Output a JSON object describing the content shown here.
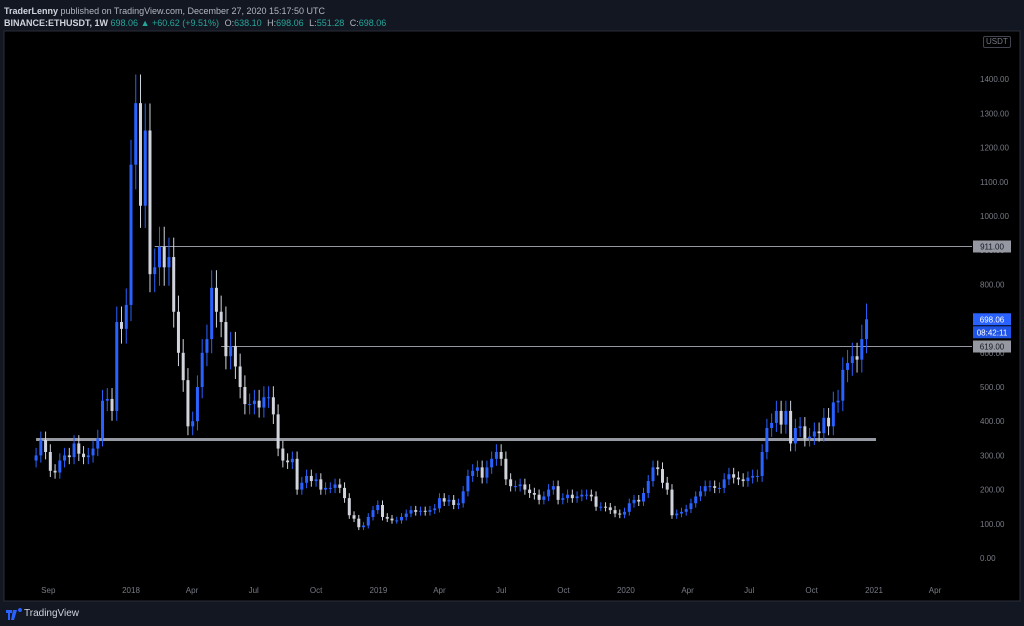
{
  "header": {
    "author": "TraderLenny",
    "published_text": "published on TradingView.com, December 27, 2020 15:17:50 UTC",
    "symbol": "BINANCE:ETHUSDT, 1W",
    "last": "698.06",
    "change": "▲ +60.62 (+9.51%)",
    "o_label": "O:",
    "o_value": "638.10",
    "h_label": "H:",
    "h_value": "698.06",
    "l_label": "L:",
    "l_value": "551.28",
    "c_label": "C:",
    "c_value": "698.06"
  },
  "currency_badge": "USDT",
  "footer": {
    "brand": "TradingView"
  },
  "colors": {
    "background": "#131722",
    "candle_up": "#2962ff",
    "candle_down": "#d1d4dc",
    "axis_text": "#787b86",
    "level_line": "#9598a1",
    "support_line": "#b2b5be",
    "price_label_bg": "#2962ff"
  },
  "chart_data": {
    "type": "candlestick",
    "interval": "1W",
    "ylim": [
      0,
      1500
    ],
    "y_ticks": [
      "0.00",
      "100.00",
      "200.00",
      "300.00",
      "400.00",
      "500.00",
      "600.00",
      "700.00",
      "800.00",
      "900.00",
      "1000.00",
      "1100.00",
      "1200.00",
      "1300.00",
      "1400.00"
    ],
    "x_ticks": [
      {
        "label": "Sep",
        "date": "2017-09-01"
      },
      {
        "label": "2018",
        "date": "2018-01-01"
      },
      {
        "label": "Apr",
        "date": "2018-04-01"
      },
      {
        "label": "Jul",
        "date": "2018-07-01"
      },
      {
        "label": "Oct",
        "date": "2018-10-01"
      },
      {
        "label": "2019",
        "date": "2019-01-01"
      },
      {
        "label": "Apr",
        "date": "2019-04-01"
      },
      {
        "label": "Jul",
        "date": "2019-07-01"
      },
      {
        "label": "Oct",
        "date": "2019-10-01"
      },
      {
        "label": "2020",
        "date": "2020-01-01"
      },
      {
        "label": "Apr",
        "date": "2020-04-01"
      },
      {
        "label": "Jul",
        "date": "2020-07-01"
      },
      {
        "label": "Oct",
        "date": "2020-10-01"
      },
      {
        "label": "2021",
        "date": "2021-01-01"
      },
      {
        "label": "Apr",
        "date": "2021-04-01"
      }
    ],
    "levels": [
      {
        "value": 911.0,
        "label": "911.00",
        "start": "2018-02-05"
      },
      {
        "value": 619.0,
        "label": "619.00",
        "start": "2018-05-14"
      }
    ],
    "support": {
      "value": 345,
      "start": "2017-08-14",
      "end": "2021-01-04"
    },
    "last_price": {
      "value": 698.06,
      "label": "698.06",
      "countdown": "08:42:11"
    },
    "closes": [
      {
        "date": "2017-08-14",
        "c": 300
      },
      {
        "date": "2017-08-21",
        "c": 345
      },
      {
        "date": "2017-08-28",
        "c": 310
      },
      {
        "date": "2017-09-04",
        "c": 255
      },
      {
        "date": "2017-09-11",
        "c": 250
      },
      {
        "date": "2017-09-18",
        "c": 285
      },
      {
        "date": "2017-09-25",
        "c": 300
      },
      {
        "date": "2017-10-02",
        "c": 295
      },
      {
        "date": "2017-10-09",
        "c": 335
      },
      {
        "date": "2017-10-16",
        "c": 305
      },
      {
        "date": "2017-10-23",
        "c": 295
      },
      {
        "date": "2017-10-30",
        "c": 300
      },
      {
        "date": "2017-11-06",
        "c": 320
      },
      {
        "date": "2017-11-13",
        "c": 350
      },
      {
        "date": "2017-11-20",
        "c": 460
      },
      {
        "date": "2017-11-27",
        "c": 465
      },
      {
        "date": "2017-12-04",
        "c": 430
      },
      {
        "date": "2017-12-11",
        "c": 690
      },
      {
        "date": "2017-12-18",
        "c": 670
      },
      {
        "date": "2017-12-25",
        "c": 740
      },
      {
        "date": "2018-01-01",
        "c": 1150
      },
      {
        "date": "2018-01-08",
        "c": 1330
      },
      {
        "date": "2018-01-15",
        "c": 1030
      },
      {
        "date": "2018-01-22",
        "c": 1250
      },
      {
        "date": "2018-01-29",
        "c": 830
      },
      {
        "date": "2018-02-05",
        "c": 850
      },
      {
        "date": "2018-02-12",
        "c": 910
      },
      {
        "date": "2018-02-19",
        "c": 850
      },
      {
        "date": "2018-02-26",
        "c": 880
      },
      {
        "date": "2018-03-05",
        "c": 720
      },
      {
        "date": "2018-03-12",
        "c": 600
      },
      {
        "date": "2018-03-19",
        "c": 520
      },
      {
        "date": "2018-03-26",
        "c": 385
      },
      {
        "date": "2018-04-02",
        "c": 400
      },
      {
        "date": "2018-04-09",
        "c": 500
      },
      {
        "date": "2018-04-16",
        "c": 600
      },
      {
        "date": "2018-04-23",
        "c": 640
      },
      {
        "date": "2018-04-30",
        "c": 790
      },
      {
        "date": "2018-05-07",
        "c": 720
      },
      {
        "date": "2018-05-14",
        "c": 690
      },
      {
        "date": "2018-05-21",
        "c": 590
      },
      {
        "date": "2018-05-28",
        "c": 620
      },
      {
        "date": "2018-06-04",
        "c": 560
      },
      {
        "date": "2018-06-11",
        "c": 500
      },
      {
        "date": "2018-06-18",
        "c": 450
      },
      {
        "date": "2018-06-25",
        "c": 450
      },
      {
        "date": "2018-07-02",
        "c": 460
      },
      {
        "date": "2018-07-09",
        "c": 440
      },
      {
        "date": "2018-07-16",
        "c": 470
      },
      {
        "date": "2018-07-23",
        "c": 470
      },
      {
        "date": "2018-07-30",
        "c": 420
      },
      {
        "date": "2018-08-06",
        "c": 320
      },
      {
        "date": "2018-08-13",
        "c": 285
      },
      {
        "date": "2018-08-20",
        "c": 280
      },
      {
        "date": "2018-08-27",
        "c": 290
      },
      {
        "date": "2018-09-03",
        "c": 200
      },
      {
        "date": "2018-09-10",
        "c": 220
      },
      {
        "date": "2018-09-17",
        "c": 240
      },
      {
        "date": "2018-09-24",
        "c": 225
      },
      {
        "date": "2018-10-01",
        "c": 230
      },
      {
        "date": "2018-10-08",
        "c": 200
      },
      {
        "date": "2018-10-15",
        "c": 205
      },
      {
        "date": "2018-10-22",
        "c": 205
      },
      {
        "date": "2018-10-29",
        "c": 215
      },
      {
        "date": "2018-11-05",
        "c": 205
      },
      {
        "date": "2018-11-12",
        "c": 175
      },
      {
        "date": "2018-11-19",
        "c": 125
      },
      {
        "date": "2018-11-26",
        "c": 115
      },
      {
        "date": "2018-12-03",
        "c": 90
      },
      {
        "date": "2018-12-10",
        "c": 95
      },
      {
        "date": "2018-12-17",
        "c": 120
      },
      {
        "date": "2018-12-24",
        "c": 140
      },
      {
        "date": "2018-12-31",
        "c": 155
      },
      {
        "date": "2019-01-07",
        "c": 120
      },
      {
        "date": "2019-01-14",
        "c": 115
      },
      {
        "date": "2019-01-21",
        "c": 110
      },
      {
        "date": "2019-01-28",
        "c": 110
      },
      {
        "date": "2019-02-04",
        "c": 120
      },
      {
        "date": "2019-02-11",
        "c": 130
      },
      {
        "date": "2019-02-18",
        "c": 140
      },
      {
        "date": "2019-02-25",
        "c": 135
      },
      {
        "date": "2019-03-04",
        "c": 138
      },
      {
        "date": "2019-03-11",
        "c": 135
      },
      {
        "date": "2019-03-18",
        "c": 140
      },
      {
        "date": "2019-03-25",
        "c": 145
      },
      {
        "date": "2019-04-01",
        "c": 175
      },
      {
        "date": "2019-04-08",
        "c": 165
      },
      {
        "date": "2019-04-15",
        "c": 170
      },
      {
        "date": "2019-04-22",
        "c": 155
      },
      {
        "date": "2019-04-29",
        "c": 160
      },
      {
        "date": "2019-05-06",
        "c": 195
      },
      {
        "date": "2019-05-13",
        "c": 240
      },
      {
        "date": "2019-05-20",
        "c": 255
      },
      {
        "date": "2019-05-27",
        "c": 265
      },
      {
        "date": "2019-06-03",
        "c": 235
      },
      {
        "date": "2019-06-10",
        "c": 265
      },
      {
        "date": "2019-06-17",
        "c": 290
      },
      {
        "date": "2019-06-24",
        "c": 310
      },
      {
        "date": "2019-07-01",
        "c": 290
      },
      {
        "date": "2019-07-08",
        "c": 230
      },
      {
        "date": "2019-07-15",
        "c": 210
      },
      {
        "date": "2019-07-22",
        "c": 210
      },
      {
        "date": "2019-07-29",
        "c": 215
      },
      {
        "date": "2019-08-05",
        "c": 200
      },
      {
        "date": "2019-08-12",
        "c": 190
      },
      {
        "date": "2019-08-19",
        "c": 185
      },
      {
        "date": "2019-08-26",
        "c": 170
      },
      {
        "date": "2019-09-02",
        "c": 180
      },
      {
        "date": "2019-09-09",
        "c": 200
      },
      {
        "date": "2019-09-16",
        "c": 210
      },
      {
        "date": "2019-09-23",
        "c": 170
      },
      {
        "date": "2019-09-30",
        "c": 175
      },
      {
        "date": "2019-10-07",
        "c": 185
      },
      {
        "date": "2019-10-14",
        "c": 175
      },
      {
        "date": "2019-10-21",
        "c": 180
      },
      {
        "date": "2019-10-28",
        "c": 185
      },
      {
        "date": "2019-11-04",
        "c": 185
      },
      {
        "date": "2019-11-11",
        "c": 180
      },
      {
        "date": "2019-11-18",
        "c": 150
      },
      {
        "date": "2019-11-25",
        "c": 150
      },
      {
        "date": "2019-12-02",
        "c": 148
      },
      {
        "date": "2019-12-09",
        "c": 140
      },
      {
        "date": "2019-12-16",
        "c": 130
      },
      {
        "date": "2019-12-23",
        "c": 127
      },
      {
        "date": "2019-12-30",
        "c": 135
      },
      {
        "date": "2020-01-06",
        "c": 160
      },
      {
        "date": "2020-01-13",
        "c": 170
      },
      {
        "date": "2020-01-20",
        "c": 165
      },
      {
        "date": "2020-01-27",
        "c": 190
      },
      {
        "date": "2020-02-03",
        "c": 225
      },
      {
        "date": "2020-02-10",
        "c": 265
      },
      {
        "date": "2020-02-17",
        "c": 260
      },
      {
        "date": "2020-02-24",
        "c": 220
      },
      {
        "date": "2020-03-02",
        "c": 200
      },
      {
        "date": "2020-03-09",
        "c": 125
      },
      {
        "date": "2020-03-16",
        "c": 130
      },
      {
        "date": "2020-03-23",
        "c": 135
      },
      {
        "date": "2020-03-30",
        "c": 143
      },
      {
        "date": "2020-04-06",
        "c": 160
      },
      {
        "date": "2020-04-13",
        "c": 180
      },
      {
        "date": "2020-04-20",
        "c": 195
      },
      {
        "date": "2020-04-27",
        "c": 210
      },
      {
        "date": "2020-05-04",
        "c": 210
      },
      {
        "date": "2020-05-11",
        "c": 205
      },
      {
        "date": "2020-05-18",
        "c": 205
      },
      {
        "date": "2020-05-25",
        "c": 230
      },
      {
        "date": "2020-06-01",
        "c": 245
      },
      {
        "date": "2020-06-08",
        "c": 235
      },
      {
        "date": "2020-06-15",
        "c": 230
      },
      {
        "date": "2020-06-22",
        "c": 225
      },
      {
        "date": "2020-06-29",
        "c": 235
      },
      {
        "date": "2020-07-06",
        "c": 240
      },
      {
        "date": "2020-07-13",
        "c": 240
      },
      {
        "date": "2020-07-20",
        "c": 310
      },
      {
        "date": "2020-07-27",
        "c": 380
      },
      {
        "date": "2020-08-03",
        "c": 395
      },
      {
        "date": "2020-08-10",
        "c": 430
      },
      {
        "date": "2020-08-17",
        "c": 390
      },
      {
        "date": "2020-08-24",
        "c": 430
      },
      {
        "date": "2020-08-31",
        "c": 335
      },
      {
        "date": "2020-09-07",
        "c": 380
      },
      {
        "date": "2020-09-14",
        "c": 385
      },
      {
        "date": "2020-09-21",
        "c": 350
      },
      {
        "date": "2020-09-28",
        "c": 355
      },
      {
        "date": "2020-10-05",
        "c": 370
      },
      {
        "date": "2020-10-12",
        "c": 365
      },
      {
        "date": "2020-10-19",
        "c": 410
      },
      {
        "date": "2020-10-26",
        "c": 385
      },
      {
        "date": "2020-11-02",
        "c": 455
      },
      {
        "date": "2020-11-09",
        "c": 460
      },
      {
        "date": "2020-11-16",
        "c": 550
      },
      {
        "date": "2020-11-23",
        "c": 570
      },
      {
        "date": "2020-11-30",
        "c": 590
      },
      {
        "date": "2020-12-07",
        "c": 580
      },
      {
        "date": "2020-12-14",
        "c": 640
      },
      {
        "date": "2020-12-21",
        "c": 698.06
      }
    ]
  }
}
